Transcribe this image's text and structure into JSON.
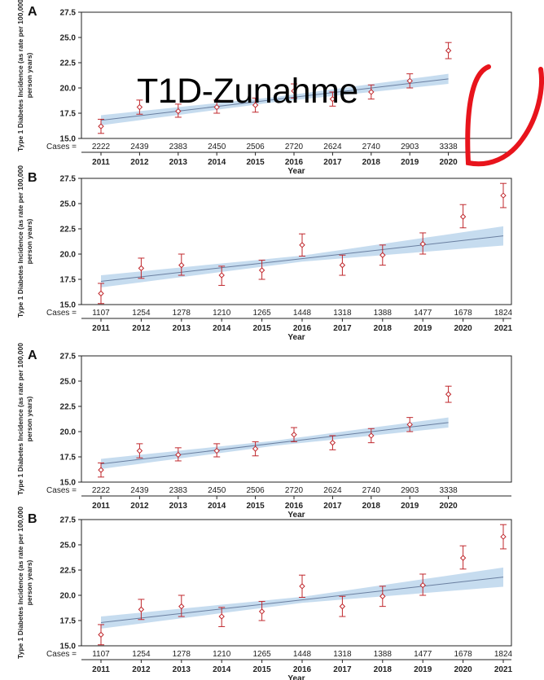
{
  "overlay": {
    "text": "T1D-Zunahme",
    "marker_color": "#e8141c"
  },
  "style": {
    "band_color": "#bcd6ec",
    "line_color": "#6a7fa0",
    "point_color": "#c0282d"
  },
  "chart_data": [
    {
      "type": "scatter",
      "panel_label": "A",
      "ylabel": "Type 1 Diabetes Incidence (as rate per 100,000 person years)",
      "xlabel": "Year",
      "cases_label": "Cases =",
      "ylim": [
        15.0,
        27.5
      ],
      "yticks": [
        "15.0",
        "17.5",
        "20.0",
        "22.5",
        "25.0",
        "27.5"
      ],
      "x": [
        "2011",
        "2012",
        "2013",
        "2014",
        "2015",
        "2016",
        "2017",
        "2018",
        "2019",
        "2020"
      ],
      "cases": [
        "2222",
        "2439",
        "2383",
        "2450",
        "2506",
        "2720",
        "2624",
        "2740",
        "2903",
        "3338"
      ],
      "values": [
        16.2,
        18.1,
        17.7,
        18.1,
        18.3,
        19.7,
        18.9,
        19.6,
        20.7,
        23.7
      ],
      "lower": [
        15.5,
        17.4,
        17.1,
        17.5,
        17.6,
        19.0,
        18.2,
        18.9,
        20.0,
        22.9
      ],
      "upper": [
        16.9,
        18.8,
        18.4,
        18.8,
        19.0,
        20.4,
        19.6,
        20.3,
        21.4,
        24.5
      ],
      "trend": {
        "start": 16.8,
        "end": 20.9
      },
      "band": {
        "start_half": 0.5,
        "mid_half": 0.25,
        "end_half": 0.5
      }
    },
    {
      "type": "scatter",
      "panel_label": "B",
      "ylabel": "Type 1 Diabetes Incidence (as rate per 100,000 person years)",
      "xlabel": "Year",
      "cases_label": "Cases =",
      "ylim": [
        15.0,
        27.5
      ],
      "yticks": [
        "15.0",
        "17.5",
        "20.0",
        "22.5",
        "25.0",
        "27.5"
      ],
      "x": [
        "2011",
        "2012",
        "2013",
        "2014",
        "2015",
        "2016",
        "2017",
        "2018",
        "2019",
        "2020",
        "2021"
      ],
      "cases": [
        "1107",
        "1254",
        "1278",
        "1210",
        "1265",
        "1448",
        "1318",
        "1388",
        "1477",
        "1678",
        "1824"
      ],
      "values": [
        16.1,
        18.6,
        18.9,
        17.9,
        18.4,
        20.9,
        18.9,
        19.9,
        21.0,
        23.7,
        25.8
      ],
      "lower": [
        15.1,
        17.6,
        17.9,
        16.9,
        17.5,
        19.8,
        17.9,
        18.9,
        20.0,
        22.6,
        24.6
      ],
      "upper": [
        17.1,
        19.6,
        20.0,
        18.8,
        19.4,
        22.0,
        19.9,
        20.9,
        22.1,
        24.9,
        27.0
      ],
      "trend": {
        "start": 17.3,
        "end": 21.8
      },
      "band": {
        "start_half": 0.6,
        "mid_half": 0.3,
        "end_half": 0.95
      }
    },
    {
      "type": "scatter",
      "panel_label": "A",
      "ylabel": "Type 1 Diabetes Incidence (as rate per 100,000 person years)",
      "xlabel": "Year",
      "cases_label": "Cases =",
      "ylim": [
        15.0,
        27.5
      ],
      "yticks": [
        "15.0",
        "17.5",
        "20.0",
        "22.5",
        "25.0",
        "27.5"
      ],
      "x": [
        "2011",
        "2012",
        "2013",
        "2014",
        "2015",
        "2016",
        "2017",
        "2018",
        "2019",
        "2020"
      ],
      "cases": [
        "2222",
        "2439",
        "2383",
        "2450",
        "2506",
        "2720",
        "2624",
        "2740",
        "2903",
        "3338"
      ],
      "values": [
        16.2,
        18.1,
        17.7,
        18.1,
        18.3,
        19.7,
        18.9,
        19.6,
        20.7,
        23.7
      ],
      "lower": [
        15.5,
        17.4,
        17.1,
        17.5,
        17.6,
        19.0,
        18.2,
        18.9,
        20.0,
        22.9
      ],
      "upper": [
        16.9,
        18.8,
        18.4,
        18.8,
        19.0,
        20.4,
        19.6,
        20.3,
        21.4,
        24.5
      ],
      "trend": {
        "start": 16.8,
        "end": 20.9
      },
      "band": {
        "start_half": 0.5,
        "mid_half": 0.25,
        "end_half": 0.5
      }
    },
    {
      "type": "scatter",
      "panel_label": "B",
      "ylabel": "Type 1 Diabetes Incidence (as rate per 100,000 person years)",
      "xlabel": "Year",
      "cases_label": "Cases =",
      "ylim": [
        15.0,
        27.5
      ],
      "yticks": [
        "15.0",
        "17.5",
        "20.0",
        "22.5",
        "25.0",
        "27.5"
      ],
      "x": [
        "2011",
        "2012",
        "2013",
        "2014",
        "2015",
        "2016",
        "2017",
        "2018",
        "2019",
        "2020",
        "2021"
      ],
      "cases": [
        "1107",
        "1254",
        "1278",
        "1210",
        "1265",
        "1448",
        "1318",
        "1388",
        "1477",
        "1678",
        "1824"
      ],
      "values": [
        16.1,
        18.6,
        18.9,
        17.9,
        18.4,
        20.9,
        18.9,
        19.9,
        21.0,
        23.7,
        25.8
      ],
      "lower": [
        15.1,
        17.6,
        17.9,
        16.9,
        17.5,
        19.8,
        17.9,
        18.9,
        20.0,
        22.6,
        24.6
      ],
      "upper": [
        17.1,
        19.6,
        20.0,
        18.8,
        19.4,
        22.0,
        19.9,
        20.9,
        22.1,
        24.9,
        27.0
      ],
      "trend": {
        "start": 17.3,
        "end": 21.8
      },
      "band": {
        "start_half": 0.6,
        "mid_half": 0.3,
        "end_half": 0.95
      }
    }
  ]
}
